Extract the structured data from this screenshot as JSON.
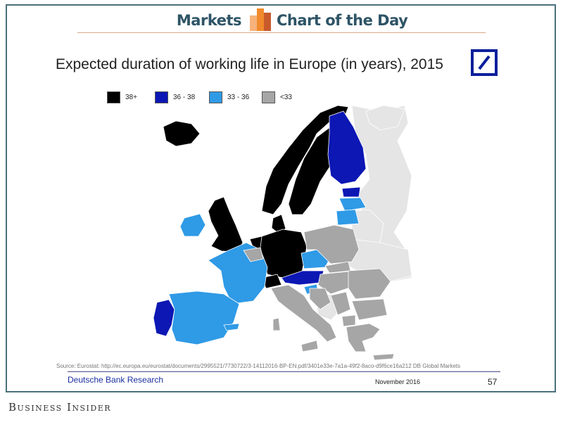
{
  "header": {
    "left_label": "Markets",
    "right_label": "Chart of the Day",
    "icon": "bar-chart-icon",
    "accent_color": "#f08a2c"
  },
  "chart": {
    "title": "Expected duration of working life in Europe (in years), 2015",
    "logo": "deutsche-bank-logo",
    "legend": [
      {
        "label": "38+",
        "color": "#000000"
      },
      {
        "label": "36 - 38",
        "color": "#0c17b4"
      },
      {
        "label": "33 - 36",
        "color": "#2f9ae6"
      },
      {
        "label": "<33",
        "color": "#a6a6a6"
      }
    ],
    "no_data_color": "#e5e5e5"
  },
  "chart_data": {
    "type": "map",
    "title": "Expected duration of working life in Europe (in years), 2015",
    "categories": [
      "38+",
      "36 - 38",
      "33 - 36",
      "<33"
    ],
    "regions": [
      {
        "name": "Iceland",
        "category": "38+"
      },
      {
        "name": "Norway",
        "category": "38+"
      },
      {
        "name": "Sweden",
        "category": "38+"
      },
      {
        "name": "Denmark",
        "category": "38+"
      },
      {
        "name": "United Kingdom",
        "category": "38+"
      },
      {
        "name": "Netherlands",
        "category": "38+"
      },
      {
        "name": "Germany",
        "category": "38+"
      },
      {
        "name": "Switzerland",
        "category": "38+"
      },
      {
        "name": "Finland",
        "category": "36 - 38"
      },
      {
        "name": "Estonia",
        "category": "36 - 38"
      },
      {
        "name": "Austria",
        "category": "36 - 38"
      },
      {
        "name": "Portugal",
        "category": "36 - 38"
      },
      {
        "name": "Latvia",
        "category": "33 - 36"
      },
      {
        "name": "Lithuania",
        "category": "33 - 36"
      },
      {
        "name": "Ireland",
        "category": "33 - 36"
      },
      {
        "name": "France",
        "category": "33 - 36"
      },
      {
        "name": "Spain",
        "category": "33 - 36"
      },
      {
        "name": "Czech Republic",
        "category": "33 - 36"
      },
      {
        "name": "Slovenia",
        "category": "33 - 36"
      },
      {
        "name": "Cyprus",
        "category": "33 - 36"
      },
      {
        "name": "Belgium",
        "category": "<33"
      },
      {
        "name": "Poland",
        "category": "<33"
      },
      {
        "name": "Slovakia",
        "category": "<33"
      },
      {
        "name": "Hungary",
        "category": "<33"
      },
      {
        "name": "Italy",
        "category": "<33"
      },
      {
        "name": "Croatia",
        "category": "<33"
      },
      {
        "name": "Romania",
        "category": "<33"
      },
      {
        "name": "Bulgaria",
        "category": "<33"
      },
      {
        "name": "Greece",
        "category": "<33"
      },
      {
        "name": "Serbia",
        "category": "<33"
      },
      {
        "name": "Macedonia",
        "category": "<33"
      }
    ]
  },
  "footer": {
    "source": "Source: Eurostat: http://ec.europa.eu/eurostat/documents/2995521/7730722/3-14112016-BP-EN.pdf/3401e33e-7a1a-49f2-8aco-d9f6ce16a212 DB Global Markets",
    "org": "Deutsche Bank Research",
    "date": "November 2016",
    "page": "57"
  },
  "brand": {
    "label": "Business Insider"
  }
}
